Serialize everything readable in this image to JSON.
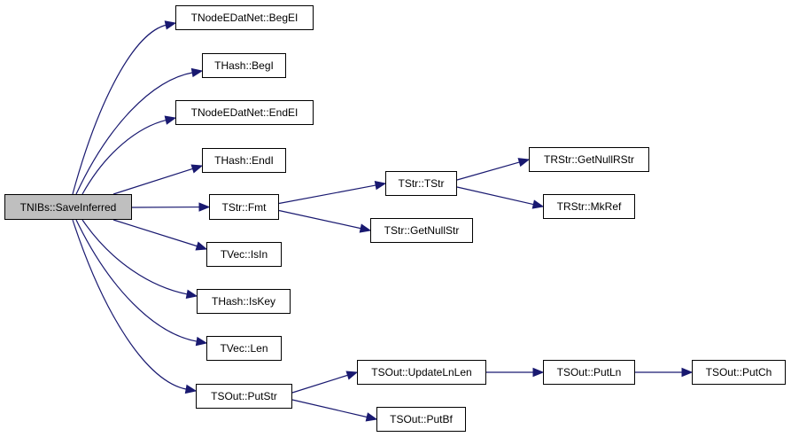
{
  "graph": {
    "edge_color": "#191970",
    "root_fill": "#bfbfbf",
    "nodes": [
      {
        "id": "root",
        "label": "TNIBs::SaveInferred"
      },
      {
        "id": "begel",
        "label": "TNodeEDatNet::BegEI"
      },
      {
        "id": "begi",
        "label": "THash::BegI"
      },
      {
        "id": "endel",
        "label": "TNodeEDatNet::EndEI"
      },
      {
        "id": "endi",
        "label": "THash::EndI"
      },
      {
        "id": "fmt",
        "label": "TStr::Fmt"
      },
      {
        "id": "tstr",
        "label": "TStr::TStr"
      },
      {
        "id": "getnullstr",
        "label": "TStr::GetNullStr"
      },
      {
        "id": "getnullrstr",
        "label": "TRStr::GetNullRStr"
      },
      {
        "id": "mkref",
        "label": "TRStr::MkRef"
      },
      {
        "id": "isin",
        "label": "TVec::IsIn"
      },
      {
        "id": "iskey",
        "label": "THash::IsKey"
      },
      {
        "id": "len",
        "label": "TVec::Len"
      },
      {
        "id": "putstr",
        "label": "TSOut::PutStr"
      },
      {
        "id": "updatelnlen",
        "label": "TSOut::UpdateLnLen"
      },
      {
        "id": "putln",
        "label": "TSOut::PutLn"
      },
      {
        "id": "putch",
        "label": "TSOut::PutCh"
      },
      {
        "id": "putbf",
        "label": "TSOut::PutBf"
      }
    ],
    "edges": [
      [
        "root",
        "begel"
      ],
      [
        "root",
        "begi"
      ],
      [
        "root",
        "endel"
      ],
      [
        "root",
        "endi"
      ],
      [
        "root",
        "fmt"
      ],
      [
        "root",
        "isin"
      ],
      [
        "root",
        "iskey"
      ],
      [
        "root",
        "len"
      ],
      [
        "root",
        "putstr"
      ],
      [
        "fmt",
        "tstr"
      ],
      [
        "fmt",
        "getnullstr"
      ],
      [
        "tstr",
        "getnullrstr"
      ],
      [
        "tstr",
        "mkref"
      ],
      [
        "putstr",
        "updatelnlen"
      ],
      [
        "putstr",
        "putbf"
      ],
      [
        "updatelnlen",
        "putln"
      ],
      [
        "putln",
        "putch"
      ]
    ]
  }
}
